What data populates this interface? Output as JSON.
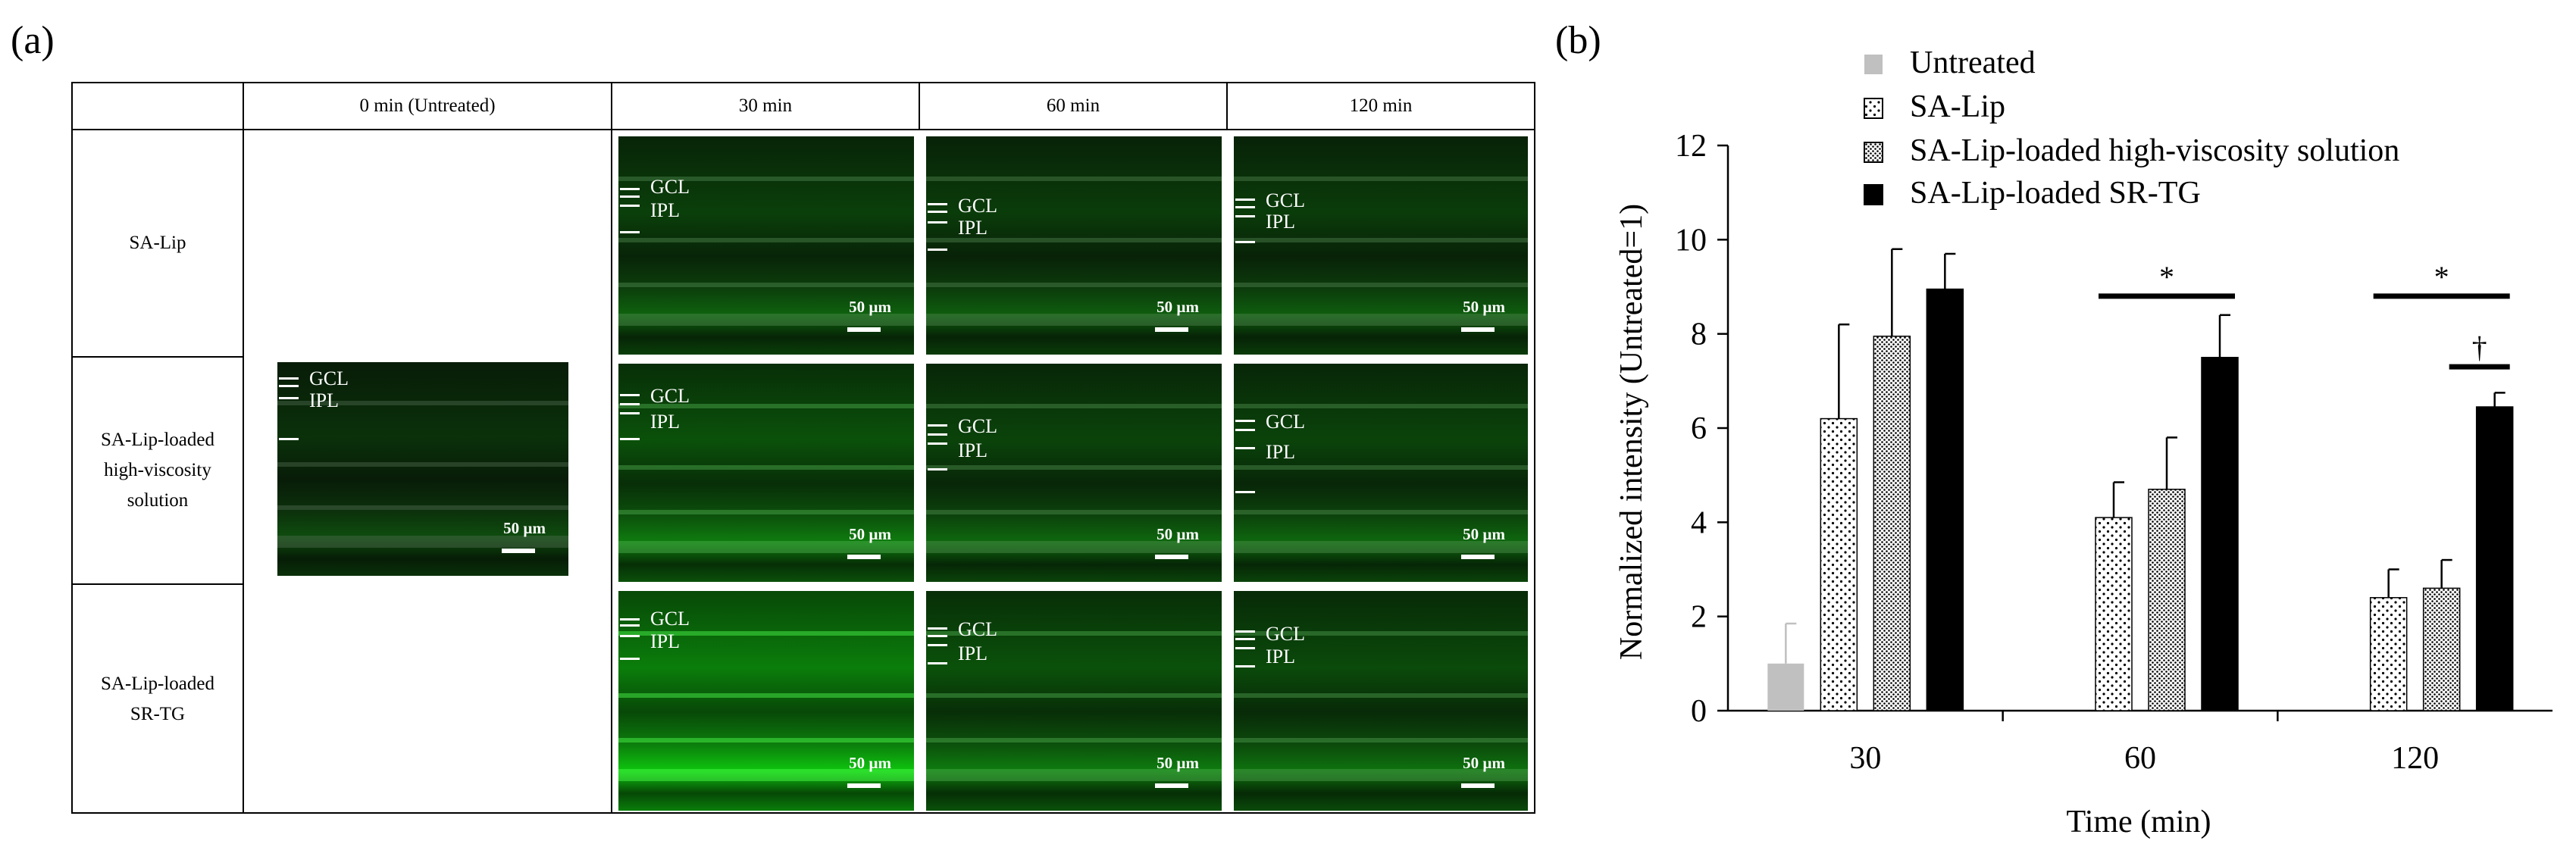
{
  "panel_labels": {
    "a": "(a)",
    "b": "(b)"
  },
  "grid": {
    "columns": [
      "0 min (Untreated)",
      "30 min",
      "60 min",
      "120 min"
    ],
    "rows": [
      "SA-Lip",
      "SA-Lip-loaded\nhigh-viscosity\nsolution",
      "SA-Lip-loaded\nSR-TG"
    ],
    "layer_labels": {
      "gcl": "GCL",
      "ipl": "IPL"
    },
    "scale_bar": "50 µm"
  },
  "chart_data": {
    "type": "bar",
    "categories": [
      "30",
      "60",
      "120"
    ],
    "xlabel": "Time (min)",
    "ylabel": "Normalized intensity (Untreated=1)",
    "ylim": [
      0,
      12
    ],
    "yticks": [
      "0",
      "2",
      "4",
      "6",
      "8",
      "10",
      "12"
    ],
    "legend_position": "top",
    "series": [
      {
        "name": "Untreated",
        "fill": "solid-gray",
        "color": "#c0c0c0",
        "values": [
          1.0,
          null,
          null
        ],
        "errors": [
          0.85,
          null,
          null
        ]
      },
      {
        "name": "SA-Lip",
        "fill": "sparse-dots",
        "color": "#000000",
        "values": [
          6.2,
          4.1,
          2.4
        ],
        "errors": [
          2.0,
          0.75,
          0.6
        ]
      },
      {
        "name": "SA-Lip-loaded high-viscosity solution",
        "fill": "dense-dots",
        "color": "#000000",
        "values": [
          7.95,
          4.7,
          2.6
        ],
        "errors": [
          1.85,
          1.1,
          0.6
        ]
      },
      {
        "name": "SA-Lip-loaded SR-TG",
        "fill": "solid-black",
        "color": "#000000",
        "values": [
          8.95,
          7.5,
          6.45
        ],
        "errors": [
          0.75,
          0.9,
          0.3
        ]
      }
    ],
    "annotations": [
      {
        "text": "*",
        "category": "60",
        "y": 8.8
      },
      {
        "text": "*",
        "category": "120",
        "y": 8.8
      },
      {
        "text": "†",
        "category": "120",
        "y": 7.3
      }
    ]
  }
}
